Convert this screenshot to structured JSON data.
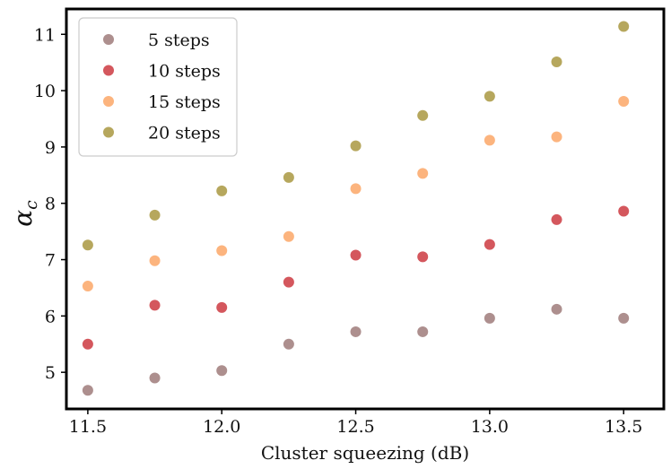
{
  "chart_data": {
    "type": "scatter",
    "title": "",
    "xlabel": "Cluster squeezing (dB)",
    "ylabel": "α_c",
    "ylabel_display": "α",
    "ylabel_subscript": "c",
    "xlim": [
      11.42,
      13.65
    ],
    "ylim": [
      4.35,
      11.45
    ],
    "x_ticks": [
      11.5,
      12.0,
      12.5,
      13.0,
      13.5
    ],
    "x_tick_labels": [
      "11.5",
      "12.0",
      "12.5",
      "13.0",
      "13.5"
    ],
    "y_ticks": [
      5,
      6,
      7,
      8,
      9,
      10,
      11
    ],
    "y_tick_labels": [
      "5",
      "6",
      "7",
      "8",
      "9",
      "10",
      "11"
    ],
    "grid": false,
    "legend_position": "top-left",
    "x": [
      11.5,
      11.75,
      12.0,
      12.25,
      12.5,
      12.75,
      13.0,
      13.25,
      13.5
    ],
    "series": [
      {
        "name": "5 steps",
        "color": "#a68584",
        "values": [
          4.68,
          4.9,
          5.03,
          5.5,
          5.72,
          5.72,
          5.96,
          6.12,
          5.96
        ]
      },
      {
        "name": "10 steps",
        "color": "#d0494f",
        "values": [
          5.5,
          6.19,
          6.15,
          6.6,
          7.08,
          7.05,
          7.27,
          7.71,
          7.86
        ]
      },
      {
        "name": "15 steps",
        "color": "#fcae73",
        "values": [
          6.53,
          6.98,
          7.16,
          7.41,
          8.26,
          8.53,
          9.12,
          9.18,
          9.81
        ]
      },
      {
        "name": "20 steps",
        "color": "#b09f4f",
        "values": [
          7.26,
          7.79,
          8.22,
          8.46,
          9.02,
          9.56,
          9.9,
          10.51,
          11.14
        ]
      }
    ]
  }
}
